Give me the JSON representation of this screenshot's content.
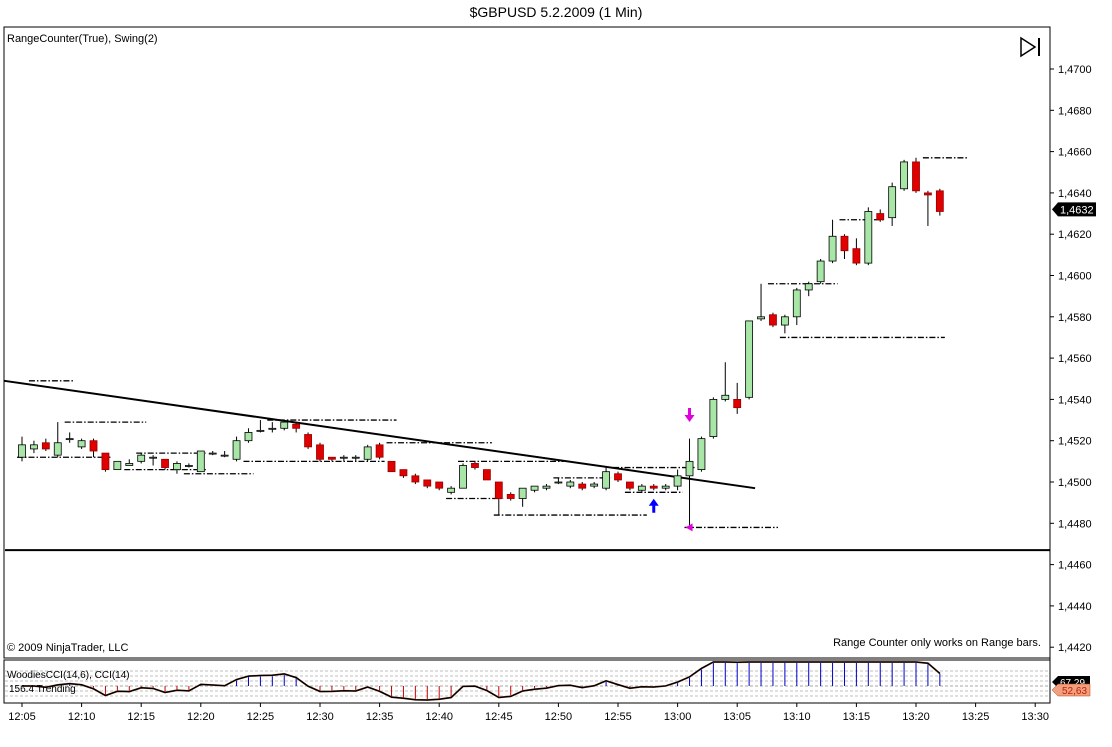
{
  "window": {
    "title": "$GBPUSD  5.2.2009 (1 Min)"
  },
  "panel": {
    "indicators_label": "RangeCounter(True), Swing(2)",
    "copyright": "© 2009 NinjaTrader, LLC",
    "note": "Range Counter only works on Range bars.",
    "last_price_badge": "1,4632",
    "indicator_label": "WoodiesCCI(14,6), CCI(14)",
    "indicator_trend_label": "156.4 Trending",
    "cci_value_1": "67,29",
    "cci_value_2": "52,63"
  },
  "chart_data": {
    "type": "candlestick",
    "title": "$GBPUSD  5.2.2009 (1 Min)",
    "y_ticks": [
      "1,4700",
      "1,4680",
      "1,4660",
      "1,4640",
      "1,4620",
      "1,4600",
      "1,4580",
      "1,4560",
      "1,4540",
      "1,4520",
      "1,4500",
      "1,4480",
      "1,4460",
      "1,4440",
      "1,4420"
    ],
    "x_ticks": [
      "12:05",
      "12:10",
      "12:15",
      "12:20",
      "12:25",
      "12:30",
      "12:35",
      "12:40",
      "12:45",
      "12:50",
      "12:55",
      "13:00",
      "13:05",
      "13:10",
      "13:15",
      "13:20",
      "13:25",
      "13:30"
    ],
    "ylim": [
      1.4418,
      1.471
    ],
    "x_range_minutes": [
      0,
      85
    ],
    "candles": [
      {
        "t": 0,
        "o": 1.4512,
        "h": 1.4522,
        "l": 1.451,
        "c": 1.4518
      },
      {
        "t": 1,
        "o": 1.4516,
        "h": 1.452,
        "l": 1.4514,
        "c": 1.4518
      },
      {
        "t": 2,
        "o": 1.4519,
        "h": 1.4521,
        "l": 1.4515,
        "c": 1.4516
      },
      {
        "t": 3,
        "o": 1.4513,
        "h": 1.4529,
        "l": 1.4512,
        "c": 1.4519
      },
      {
        "t": 4,
        "o": 1.4521,
        "h": 1.4524,
        "l": 1.4519,
        "c": 1.4521
      },
      {
        "t": 5,
        "o": 1.4517,
        "h": 1.4521,
        "l": 1.4516,
        "c": 1.452
      },
      {
        "t": 6,
        "o": 1.452,
        "h": 1.4521,
        "l": 1.4512,
        "c": 1.4515
      },
      {
        "t": 7,
        "o": 1.4514,
        "h": 1.4514,
        "l": 1.4505,
        "c": 1.4506
      },
      {
        "t": 8,
        "o": 1.4506,
        "h": 1.451,
        "l": 1.4506,
        "c": 1.451
      },
      {
        "t": 9,
        "o": 1.4508,
        "h": 1.4511,
        "l": 1.4508,
        "c": 1.4509
      },
      {
        "t": 10,
        "o": 1.451,
        "h": 1.4514,
        "l": 1.4509,
        "c": 1.4513
      },
      {
        "t": 11,
        "o": 1.4512,
        "h": 1.4513,
        "l": 1.4508,
        "c": 1.4512
      },
      {
        "t": 12,
        "o": 1.4511,
        "h": 1.4511,
        "l": 1.4506,
        "c": 1.4507
      },
      {
        "t": 13,
        "o": 1.4506,
        "h": 1.451,
        "l": 1.4504,
        "c": 1.4509
      },
      {
        "t": 14,
        "o": 1.4508,
        "h": 1.4509,
        "l": 1.4507,
        "c": 1.4508
      },
      {
        "t": 15,
        "o": 1.4505,
        "h": 1.4515,
        "l": 1.4505,
        "c": 1.4515
      },
      {
        "t": 16,
        "o": 1.4514,
        "h": 1.4515,
        "l": 1.4513,
        "c": 1.4514
      },
      {
        "t": 17,
        "o": 1.4513,
        "h": 1.4515,
        "l": 1.4512,
        "c": 1.4513
      },
      {
        "t": 18,
        "o": 1.4511,
        "h": 1.4522,
        "l": 1.451,
        "c": 1.452
      },
      {
        "t": 19,
        "o": 1.452,
        "h": 1.4526,
        "l": 1.4519,
        "c": 1.4524
      },
      {
        "t": 20,
        "o": 1.4525,
        "h": 1.453,
        "l": 1.4524,
        "c": 1.4525
      },
      {
        "t": 21,
        "o": 1.4526,
        "h": 1.4529,
        "l": 1.4524,
        "c": 1.4526
      },
      {
        "t": 22,
        "o": 1.4526,
        "h": 1.453,
        "l": 1.4525,
        "c": 1.4529
      },
      {
        "t": 23,
        "o": 1.4528,
        "h": 1.4529,
        "l": 1.4524,
        "c": 1.4526
      },
      {
        "t": 24,
        "o": 1.4523,
        "h": 1.4524,
        "l": 1.4516,
        "c": 1.4517
      },
      {
        "t": 25,
        "o": 1.4518,
        "h": 1.4519,
        "l": 1.451,
        "c": 1.4511
      },
      {
        "t": 26,
        "o": 1.4512,
        "h": 1.4512,
        "l": 1.451,
        "c": 1.4511
      },
      {
        "t": 27,
        "o": 1.4512,
        "h": 1.4513,
        "l": 1.451,
        "c": 1.4512
      },
      {
        "t": 28,
        "o": 1.4512,
        "h": 1.4513,
        "l": 1.451,
        "c": 1.4512
      },
      {
        "t": 29,
        "o": 1.4511,
        "h": 1.4518,
        "l": 1.451,
        "c": 1.4517
      },
      {
        "t": 30,
        "o": 1.4518,
        "h": 1.4519,
        "l": 1.4511,
        "c": 1.4512
      },
      {
        "t": 31,
        "o": 1.451,
        "h": 1.451,
        "l": 1.4505,
        "c": 1.4505
      },
      {
        "t": 32,
        "o": 1.4506,
        "h": 1.4506,
        "l": 1.4502,
        "c": 1.4503
      },
      {
        "t": 33,
        "o": 1.4503,
        "h": 1.4504,
        "l": 1.4499,
        "c": 1.45
      },
      {
        "t": 34,
        "o": 1.4501,
        "h": 1.4501,
        "l": 1.4497,
        "c": 1.4498
      },
      {
        "t": 35,
        "o": 1.45,
        "h": 1.45,
        "l": 1.4496,
        "c": 1.4497
      },
      {
        "t": 36,
        "o": 1.4495,
        "h": 1.4498,
        "l": 1.4494,
        "c": 1.4497
      },
      {
        "t": 37,
        "o": 1.4497,
        "h": 1.4509,
        "l": 1.4497,
        "c": 1.4508
      },
      {
        "t": 38,
        "o": 1.4509,
        "h": 1.451,
        "l": 1.4506,
        "c": 1.4507
      },
      {
        "t": 39,
        "o": 1.4506,
        "h": 1.4506,
        "l": 1.4501,
        "c": 1.4501
      },
      {
        "t": 40,
        "o": 1.45,
        "h": 1.45,
        "l": 1.4484,
        "c": 1.4492
      },
      {
        "t": 41,
        "o": 1.4494,
        "h": 1.4495,
        "l": 1.4491,
        "c": 1.4492
      },
      {
        "t": 42,
        "o": 1.4492,
        "h": 1.4497,
        "l": 1.4488,
        "c": 1.4497
      },
      {
        "t": 43,
        "o": 1.4496,
        "h": 1.4498,
        "l": 1.4495,
        "c": 1.4498
      },
      {
        "t": 44,
        "o": 1.4497,
        "h": 1.4499,
        "l": 1.4496,
        "c": 1.4498
      },
      {
        "t": 45,
        "o": 1.45,
        "h": 1.4502,
        "l": 1.4499,
        "c": 1.45
      },
      {
        "t": 46,
        "o": 1.4498,
        "h": 1.4501,
        "l": 1.4497,
        "c": 1.45
      },
      {
        "t": 47,
        "o": 1.4499,
        "h": 1.45,
        "l": 1.4496,
        "c": 1.4497
      },
      {
        "t": 48,
        "o": 1.4498,
        "h": 1.45,
        "l": 1.4497,
        "c": 1.4499
      },
      {
        "t": 49,
        "o": 1.4497,
        "h": 1.4507,
        "l": 1.4496,
        "c": 1.4505
      },
      {
        "t": 50,
        "o": 1.4504,
        "h": 1.4505,
        "l": 1.45,
        "c": 1.4501
      },
      {
        "t": 51,
        "o": 1.45,
        "h": 1.45,
        "l": 1.4496,
        "c": 1.4497
      },
      {
        "t": 52,
        "o": 1.4496,
        "h": 1.4499,
        "l": 1.4495,
        "c": 1.4498
      },
      {
        "t": 53,
        "o": 1.4498,
        "h": 1.4499,
        "l": 1.4496,
        "c": 1.4497
      },
      {
        "t": 54,
        "o": 1.4497,
        "h": 1.4499,
        "l": 1.4496,
        "c": 1.4498
      },
      {
        "t": 55,
        "o": 1.4498,
        "h": 1.4506,
        "l": 1.4496,
        "c": 1.4503
      },
      {
        "t": 56,
        "o": 1.4503,
        "h": 1.4521,
        "l": 1.4479,
        "c": 1.451
      },
      {
        "t": 57,
        "o": 1.4506,
        "h": 1.4522,
        "l": 1.4505,
        "c": 1.4521
      },
      {
        "t": 58,
        "o": 1.4522,
        "h": 1.4541,
        "l": 1.4521,
        "c": 1.454
      },
      {
        "t": 59,
        "o": 1.454,
        "h": 1.4558,
        "l": 1.4539,
        "c": 1.4542
      },
      {
        "t": 60,
        "o": 1.454,
        "h": 1.4548,
        "l": 1.4533,
        "c": 1.4536
      },
      {
        "t": 61,
        "o": 1.4541,
        "h": 1.4578,
        "l": 1.454,
        "c": 1.4578
      },
      {
        "t": 62,
        "o": 1.4579,
        "h": 1.4596,
        "l": 1.4578,
        "c": 1.458
      },
      {
        "t": 63,
        "o": 1.4581,
        "h": 1.4582,
        "l": 1.4575,
        "c": 1.4576
      },
      {
        "t": 64,
        "o": 1.4576,
        "h": 1.4581,
        "l": 1.4572,
        "c": 1.458
      },
      {
        "t": 65,
        "o": 1.458,
        "h": 1.4594,
        "l": 1.4576,
        "c": 1.4593
      },
      {
        "t": 66,
        "o": 1.4593,
        "h": 1.4597,
        "l": 1.459,
        "c": 1.4596
      },
      {
        "t": 67,
        "o": 1.4597,
        "h": 1.4608,
        "l": 1.4596,
        "c": 1.4607
      },
      {
        "t": 68,
        "o": 1.4607,
        "h": 1.4627,
        "l": 1.4606,
        "c": 1.4619
      },
      {
        "t": 69,
        "o": 1.4619,
        "h": 1.462,
        "l": 1.4608,
        "c": 1.4612
      },
      {
        "t": 70,
        "o": 1.4613,
        "h": 1.4618,
        "l": 1.4605,
        "c": 1.4606
      },
      {
        "t": 71,
        "o": 1.4606,
        "h": 1.4633,
        "l": 1.4605,
        "c": 1.4631
      },
      {
        "t": 72,
        "o": 1.463,
        "h": 1.4632,
        "l": 1.4626,
        "c": 1.4627
      },
      {
        "t": 73,
        "o": 1.4628,
        "h": 1.4645,
        "l": 1.4624,
        "c": 1.4643
      },
      {
        "t": 74,
        "o": 1.4642,
        "h": 1.4656,
        "l": 1.4641,
        "c": 1.4655
      },
      {
        "t": 75,
        "o": 1.4655,
        "h": 1.4657,
        "l": 1.464,
        "c": 1.4641
      },
      {
        "t": 76,
        "o": 1.464,
        "h": 1.4641,
        "l": 1.4624,
        "c": 1.4639
      },
      {
        "t": 77,
        "o": 1.4641,
        "h": 1.4642,
        "l": 1.4629,
        "c": 1.4631
      }
    ],
    "swing_levels": [
      {
        "t0": 1,
        "t1": 4,
        "y": 1.4549
      },
      {
        "t0": 0,
        "t1": 7,
        "y": 1.4512
      },
      {
        "t0": 4,
        "t1": 10,
        "y": 1.4529
      },
      {
        "t0": 10,
        "t1": 15,
        "y": 1.4514
      },
      {
        "t0": 9,
        "t1": 15,
        "y": 1.4506
      },
      {
        "t0": 14,
        "t1": 19,
        "y": 1.4504
      },
      {
        "t0": 21,
        "t1": 31,
        "y": 1.453
      },
      {
        "t0": 19,
        "t1": 30,
        "y": 1.451
      },
      {
        "t0": 31,
        "t1": 39,
        "y": 1.4519
      },
      {
        "t0": 37,
        "t1": 45,
        "y": 1.451
      },
      {
        "t0": 36,
        "t1": 40,
        "y": 1.4492
      },
      {
        "t0": 40,
        "t1": 52,
        "y": 1.4484
      },
      {
        "t0": 45,
        "t1": 49,
        "y": 1.4502
      },
      {
        "t0": 50,
        "t1": 56,
        "y": 1.4507
      },
      {
        "t0": 51,
        "t1": 55,
        "y": 1.4495
      },
      {
        "t0": 56,
        "t1": 63,
        "y": 1.4478
      },
      {
        "t0": 63,
        "t1": 68,
        "y": 1.4596
      },
      {
        "t0": 64,
        "t1": 77,
        "y": 1.457
      },
      {
        "t0": 69,
        "t1": 72,
        "y": 1.4627
      },
      {
        "t0": 76,
        "t1": 79,
        "y": 1.4657
      }
    ],
    "trendline": {
      "t0": -1.5,
      "y0": 1.4549,
      "t1": 61.5,
      "y1": 1.4497
    },
    "horizontal_line": 1.4467,
    "markers": [
      {
        "type": "sell-arrow",
        "t": 56,
        "y": 1.4531,
        "color": "#e000e0"
      },
      {
        "type": "buy-arrow",
        "t": 53,
        "y": 1.4489,
        "color": "#0000ff"
      },
      {
        "type": "dot",
        "t": 56,
        "y": 1.4478,
        "color": "#e000e0"
      }
    ],
    "up_color": "#a8e6a8",
    "down_color": "#e00000",
    "indicator": {
      "label": "WoodiesCCI(14,6), CCI(14)",
      "last_value": "67,29",
      "last_value_2": "52,63"
    }
  }
}
